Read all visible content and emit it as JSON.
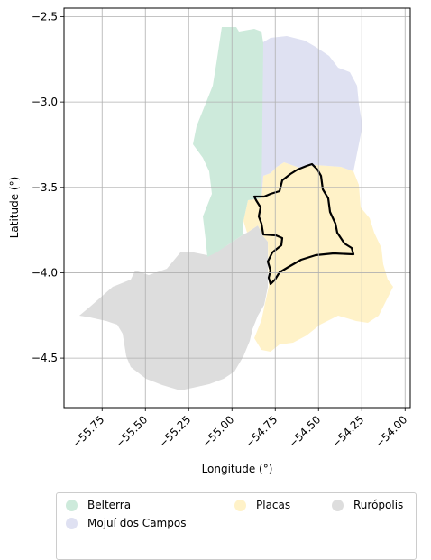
{
  "map": {
    "xlabel": "Longitude (°)",
    "ylabel": "Latitude (°)",
    "xlim": [
      -55.97,
      -53.97
    ],
    "ylim": [
      -4.79,
      -2.45
    ],
    "x_ticks": [
      {
        "value": -55.75,
        "label": "−55.75"
      },
      {
        "value": -55.5,
        "label": "−55.50"
      },
      {
        "value": -55.25,
        "label": "−55.25"
      },
      {
        "value": -55.0,
        "label": "−55.00"
      },
      {
        "value": -54.75,
        "label": "−54.75"
      },
      {
        "value": -54.5,
        "label": "−54.50"
      },
      {
        "value": -54.25,
        "label": "−54.25"
      },
      {
        "value": -54.0,
        "label": "−54.00"
      }
    ],
    "y_ticks": [
      {
        "value": -2.5,
        "label": "−2.5"
      },
      {
        "value": -3.0,
        "label": "−3.0"
      },
      {
        "value": -3.5,
        "label": "−3.5"
      },
      {
        "value": -4.0,
        "label": "−4.0"
      },
      {
        "value": -4.5,
        "label": "−4.5"
      }
    ],
    "grid": true,
    "regions": [
      {
        "name": "Rurópolis",
        "color": "#dddddd"
      },
      {
        "name": "Placas",
        "color": "#fff2c8"
      },
      {
        "name": "Mojuí dos Campos",
        "color": "#dfe1f2"
      },
      {
        "name": "Belterra",
        "color": "#cdeadb"
      }
    ],
    "outline_color": "#000000"
  },
  "legend": {
    "placement": "bottom",
    "items": [
      {
        "label": "Belterra",
        "color": "#cdeadb"
      },
      {
        "label": "Mojuí dos Campos",
        "color": "#dfe1f2"
      },
      {
        "label": "Placas",
        "color": "#fff2c8"
      },
      {
        "label": "Rurópolis",
        "color": "#dddddd"
      }
    ]
  }
}
